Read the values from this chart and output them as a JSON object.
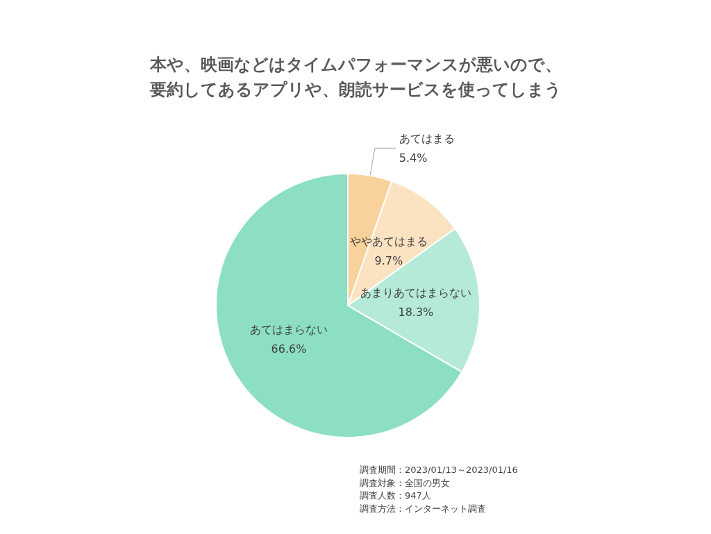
{
  "chart_data": {
    "type": "pie",
    "title": "本や、映画などはタイムパフォーマンスが悪いので、要約してあるアプリや、朗読サービスを使ってしまう",
    "categories": [
      "あてはまる",
      "ややあてはまる",
      "あまりあてはまらない",
      "あてはまらない"
    ],
    "values": [
      5.4,
      9.7,
      18.3,
      66.6
    ],
    "colors": [
      "#f8d19b",
      "#fbe3c2",
      "#b5ead9",
      "#8ddfc4"
    ],
    "value_labels": [
      "5.4%",
      "9.7%",
      "18.3%",
      "66.6%"
    ],
    "legend": false,
    "annotations": [
      "調査期間：2023/01/13～2023/01/16",
      "調査対象：全国の男女",
      "調査人数：947人",
      "調査方法：インターネット調査"
    ]
  }
}
